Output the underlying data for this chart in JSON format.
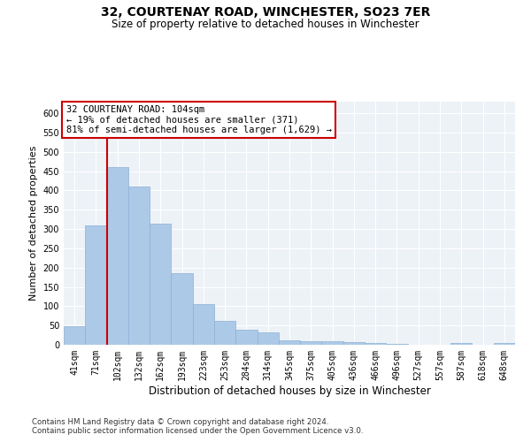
{
  "title": "32, COURTENAY ROAD, WINCHESTER, SO23 7ER",
  "subtitle": "Size of property relative to detached houses in Winchester",
  "xlabel": "Distribution of detached houses by size in Winchester",
  "ylabel": "Number of detached properties",
  "annotation_line1": "32 COURTENAY ROAD: 104sqm",
  "annotation_line2": "← 19% of detached houses are smaller (371)",
  "annotation_line3": "81% of semi-detached houses are larger (1,629) →",
  "footnote1": "Contains HM Land Registry data © Crown copyright and database right 2024.",
  "footnote2": "Contains public sector information licensed under the Open Government Licence v3.0.",
  "categories": [
    "41sqm",
    "71sqm",
    "102sqm",
    "132sqm",
    "162sqm",
    "193sqm",
    "223sqm",
    "253sqm",
    "284sqm",
    "314sqm",
    "345sqm",
    "375sqm",
    "405sqm",
    "436sqm",
    "466sqm",
    "496sqm",
    "527sqm",
    "557sqm",
    "587sqm",
    "618sqm",
    "648sqm"
  ],
  "values": [
    47,
    310,
    460,
    410,
    315,
    185,
    105,
    63,
    38,
    32,
    12,
    10,
    10,
    8,
    5,
    3,
    0,
    0,
    5,
    0,
    5
  ],
  "bar_color": "#adc9e8",
  "bar_edge_color": "#8ab0d4",
  "vline_color": "#cc0000",
  "vline_index": 2,
  "ylim": [
    0,
    630
  ],
  "yticks": [
    0,
    50,
    100,
    150,
    200,
    250,
    300,
    350,
    400,
    450,
    500,
    550,
    600
  ],
  "annotation_box_edge": "#cc0000",
  "bg_color": "#edf2f7",
  "title_fontsize": 10,
  "subtitle_fontsize": 8.5,
  "ylabel_fontsize": 8,
  "xlabel_fontsize": 8.5,
  "tick_fontsize": 7,
  "annot_fontsize": 7.5
}
